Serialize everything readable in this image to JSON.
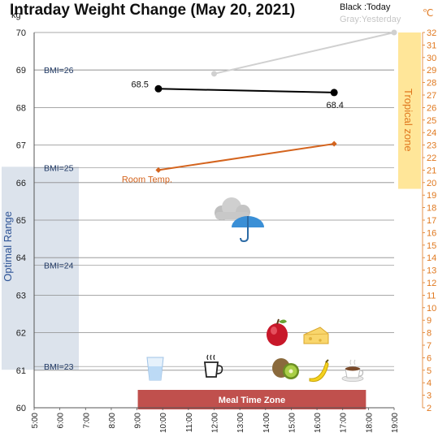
{
  "chart_data": {
    "type": "line",
    "title": "Intraday Weight Change (May 20, 2021)",
    "legend": {
      "today": "Black :Today",
      "yesterday": "Gray:Yesterday"
    },
    "y_unit": "kg",
    "y2_unit": "℃",
    "ylim": [
      60,
      70
    ],
    "y2lim": [
      2,
      32
    ],
    "xlim": [
      "5:00",
      "19:00"
    ],
    "x_ticks": [
      "5:00",
      "6:00",
      "7:00",
      "8:00",
      "9:00",
      "10:00",
      "11:00",
      "12:00",
      "13:00",
      "14:00",
      "15:00",
      "16:00",
      "17:00",
      "18:00",
      "19:00"
    ],
    "y_ticks": [
      60,
      61,
      62,
      63,
      64,
      65,
      66,
      67,
      68,
      69,
      70
    ],
    "y2_ticks": [
      2,
      3,
      4,
      5,
      6,
      7,
      8,
      9,
      10,
      11,
      12,
      13,
      14,
      15,
      16,
      17,
      18,
      19,
      20,
      21,
      22,
      23,
      24,
      25,
      26,
      27,
      28,
      29,
      30,
      31,
      32
    ],
    "grid": true,
    "series": [
      {
        "name": "Today",
        "axis": "kg",
        "color": "#000000",
        "marker": "circle",
        "points": [
          {
            "x": "9:50",
            "y": 68.5
          },
          {
            "x": "16:40",
            "y": 68.4
          }
        ]
      },
      {
        "name": "Yesterday",
        "axis": "kg",
        "color": "#d0d0d0",
        "marker": "circle",
        "points": [
          {
            "x": "12:00",
            "y": 68.9
          },
          {
            "x": "19:00",
            "y": 70.0
          }
        ]
      },
      {
        "name": "Room Temp.",
        "axis": "celsius",
        "color": "#d4641e",
        "marker": "diamond",
        "points": [
          {
            "x": "9:50",
            "y": 21.0
          },
          {
            "x": "16:40",
            "y": 23.1
          }
        ]
      }
    ],
    "data_labels": [
      {
        "text": "68.5",
        "series": "Today",
        "position": "left"
      },
      {
        "text": "68.4",
        "series": "Today",
        "position": "below"
      }
    ],
    "series_label": {
      "text": "Room Temp.",
      "series": "Room Temp."
    },
    "bmi_lines": [
      {
        "label": "BMI=26",
        "kg": 69.0
      },
      {
        "label": "BMI=25",
        "kg": 66.4
      },
      {
        "label": "BMI=24",
        "kg": 63.8
      },
      {
        "label": "BMI=23",
        "kg": 61.1
      }
    ],
    "bands": {
      "optimal": {
        "label": "Optimal Range",
        "kg_from": 61.1,
        "kg_to": 66.4,
        "color": "#dce3ec"
      },
      "tropical": {
        "label": "Tropical zone",
        "celsius_from": 19.5,
        "celsius_to": 32,
        "color": "#ffe699"
      },
      "meal": {
        "label": "Meal Time Zone",
        "time_from": "9:00",
        "time_to": "18:00",
        "color": "#c0504d"
      }
    },
    "icons": [
      {
        "name": "cloud-umbrella-icon",
        "meaning": "weather rainy"
      },
      {
        "name": "water-glass-icon",
        "meaning": "water"
      },
      {
        "name": "coffee-cup-icon",
        "meaning": "coffee"
      },
      {
        "name": "apple-icon",
        "meaning": "apple"
      },
      {
        "name": "cheese-icon",
        "meaning": "cheese"
      },
      {
        "name": "kiwi-icon",
        "meaning": "kiwi"
      },
      {
        "name": "banana-icon",
        "meaning": "banana"
      },
      {
        "name": "cocoa-cup-icon",
        "meaning": "hot cocoa"
      }
    ]
  }
}
